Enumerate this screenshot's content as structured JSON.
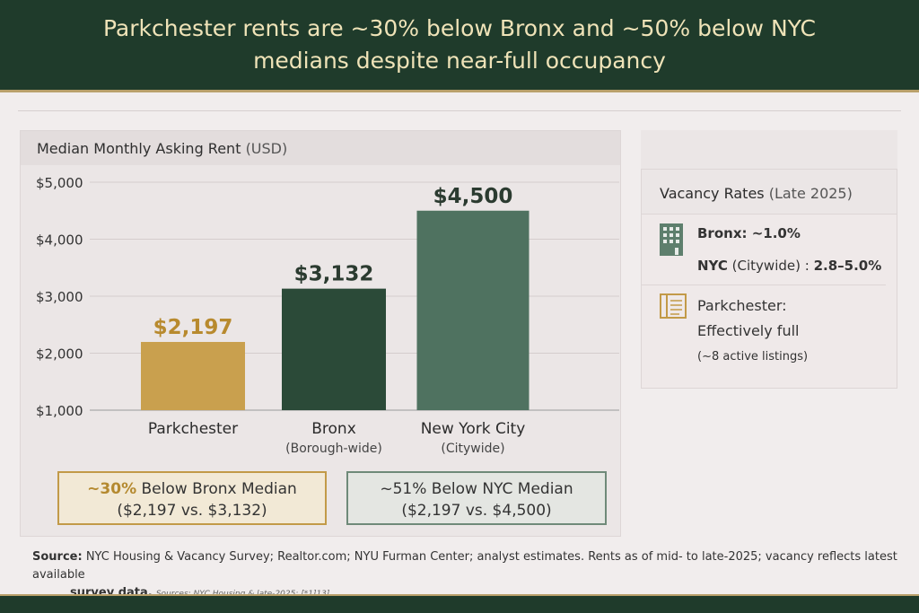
{
  "header": {
    "title": "Parkchester rents are ~30% below Bronx and ~50% below NYC medians despite near-full occupancy"
  },
  "chart_data": {
    "type": "bar",
    "title": "Median Monthly Asking Rent",
    "title_unit": "(USD)",
    "categories": [
      "Parkchester",
      "Bronx",
      "New York City"
    ],
    "subcategories": [
      "",
      "(Borough-wide)",
      "(Citywide)"
    ],
    "values": [
      2197,
      3132,
      4500
    ],
    "data_labels": [
      "$2,197",
      "$3,132",
      "$4,500"
    ],
    "colors": [
      "#c9a04e",
      "#2b4a38",
      "#4f7260"
    ],
    "label_colors": [
      "#b88a2e",
      "#2b3b30",
      "#2b3b30"
    ],
    "ylim": [
      1000,
      5000
    ],
    "yticks": [
      1000,
      2000,
      3000,
      4000,
      5000
    ],
    "ytick_labels": [
      "$1,000",
      "$2,000",
      "$3,000",
      "$4,000",
      "$5,000"
    ],
    "grid": true
  },
  "callouts": [
    {
      "pct": "~30%",
      "text": " Below Bronx Median",
      "detail": "($2,197 vs. $3,132)"
    },
    {
      "pct": "~51%",
      "text": " Below NYC Median",
      "detail": "($2,197 vs. $4,500)"
    }
  ],
  "vacancy": {
    "title": "Vacancy Rates",
    "title_note": "(Late 2025)",
    "bronx": "Bronx: ~1.0%",
    "nyc_label": "NYC",
    "nyc_note": "(Citywide) :",
    "nyc_value": "2.8–5.0%",
    "park_label": "Parkchester:",
    "park_value": "Effectively full",
    "park_note": "(~8 active listings)",
    "icons": [
      "building-icon",
      "document-icon"
    ]
  },
  "footer": {
    "source_label": "Source:",
    "source_text": "NYC Housing & Vacancy Survey; Realtor.com; NYU Furman Center; analyst estimates. Rents as of mid- to late-2025; vacancy reflects latest available",
    "source_text2": "survey data.",
    "small": "Sources: NYC Housing & late-2025; [*1]13]"
  }
}
